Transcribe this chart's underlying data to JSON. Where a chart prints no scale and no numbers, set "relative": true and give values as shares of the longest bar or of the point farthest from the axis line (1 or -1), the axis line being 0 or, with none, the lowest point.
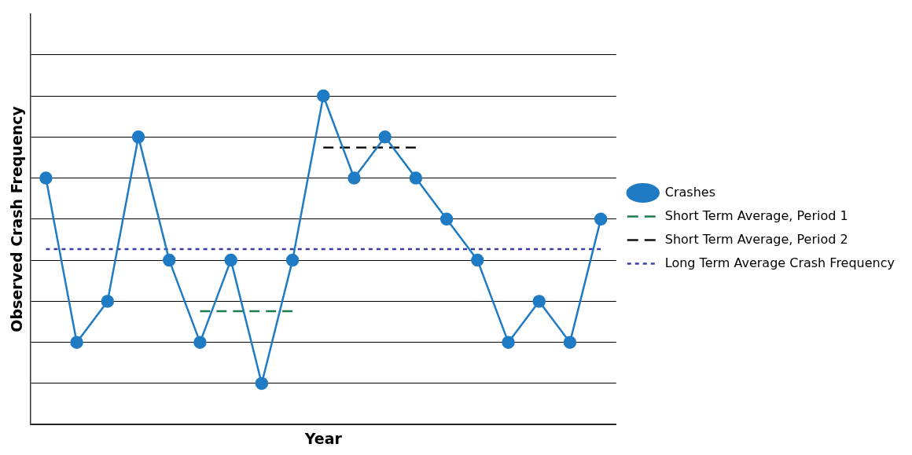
{
  "chart_data": {
    "type": "line",
    "relative": true,
    "xlabel": "Year",
    "ylabel": "Observed Crash Frequency",
    "tick_labels": false,
    "grid": "y",
    "legend": "right",
    "categories": [
      null,
      null,
      null,
      null,
      null,
      null,
      null,
      null,
      null,
      null,
      null,
      null,
      null,
      null,
      null,
      null,
      null,
      null,
      null
    ],
    "series": [
      {
        "name": "Crashes",
        "color": "#1f7bc4",
        "marker": "circle",
        "line_style": "solid",
        "values": [
          0.75,
          0.25,
          0.375,
          0.875,
          0.5,
          0.25,
          0.5,
          0.125,
          0.5,
          1,
          0.75,
          0.875,
          0.75,
          0.625,
          0.5,
          0.25,
          0.375,
          0.25,
          0.625
        ]
      },
      {
        "name": "Short Term Average, Period 1",
        "color": "#1e7d4c",
        "marker": "none",
        "line_style": "dashed",
        "values": [
          null,
          null,
          null,
          null,
          null,
          0.345,
          0.345,
          0.345,
          0.345,
          null,
          null,
          null,
          null,
          null,
          null,
          null,
          null,
          null,
          null
        ]
      },
      {
        "name": "Short Term Average, Period 2",
        "color": "#111111",
        "marker": "none",
        "line_style": "dashed",
        "values": [
          null,
          null,
          null,
          null,
          null,
          null,
          null,
          null,
          null,
          0.843,
          0.843,
          0.843,
          0.843,
          null,
          null,
          null,
          null,
          null,
          null
        ]
      },
      {
        "name": "Long Term Average Crash Frequency",
        "color": "#3d3da0",
        "marker": "none",
        "line_style": "dotted",
        "values": [
          0.534,
          0.534,
          0.534,
          0.534,
          0.534,
          0.534,
          0.534,
          0.534,
          0.534,
          0.534,
          0.534,
          0.534,
          0.534,
          0.534,
          0.534,
          0.534,
          0.534,
          0.534,
          0.534
        ]
      }
    ]
  }
}
